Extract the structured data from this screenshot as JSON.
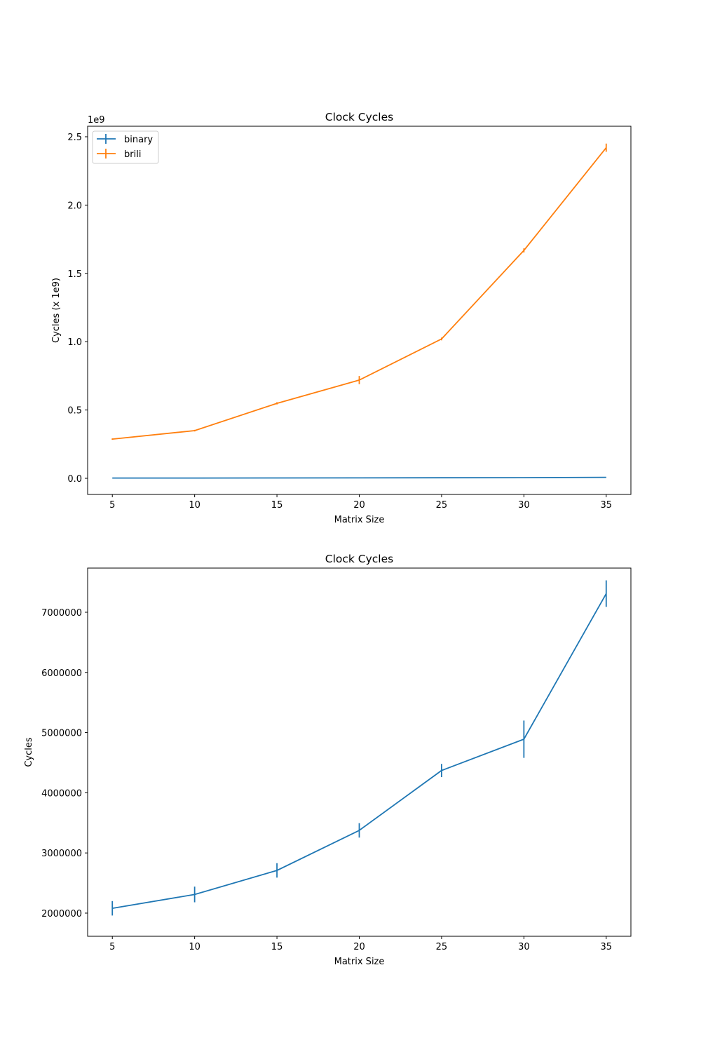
{
  "chart_data": [
    {
      "type": "line",
      "title": "Clock Cycles",
      "xlabel": "Matrix Size",
      "ylabel": "Cycles (x 1e9)",
      "offset_label": "1e9",
      "xlim": [
        3.5,
        36.5
      ],
      "ylim": [
        -0.118,
        2.577
      ],
      "xticks": [
        5,
        10,
        15,
        20,
        25,
        30,
        35
      ],
      "xtick_labels": [
        "5",
        "10",
        "15",
        "20",
        "25",
        "30",
        "35"
      ],
      "yticks": [
        0,
        0.5,
        1.0,
        1.5,
        2.0,
        2.5
      ],
      "ytick_labels": [
        "0.0",
        "0.5",
        "1.0",
        "1.5",
        "2.0",
        "2.5"
      ],
      "grid": false,
      "legend_position": "top-left",
      "x": [
        5,
        10,
        15,
        20,
        25,
        30,
        35
      ],
      "series": [
        {
          "name": "binary",
          "color": "#1f77b4",
          "values": [
            0.0021,
            0.0023,
            0.0027,
            0.0034,
            0.0044,
            0.0049,
            0.0073
          ],
          "errors": [
            0.0001,
            0.0001,
            0.0001,
            0.0001,
            0.0001,
            0.0003,
            0.0002
          ]
        },
        {
          "name": "brili",
          "color": "#ff7f0e",
          "values": [
            0.287,
            0.349,
            0.549,
            0.719,
            1.02,
            1.668,
            2.42
          ],
          "errors": [
            0.005,
            0.006,
            0.008,
            0.03,
            0.01,
            0.015,
            0.03
          ]
        }
      ]
    },
    {
      "type": "line",
      "title": "Clock Cycles",
      "xlabel": "Matrix Size",
      "ylabel": "Cycles",
      "xlim": [
        3.5,
        36.5
      ],
      "ylim": [
        1615000,
        7734000
      ],
      "xticks": [
        5,
        10,
        15,
        20,
        25,
        30,
        35
      ],
      "xtick_labels": [
        "5",
        "10",
        "15",
        "20",
        "25",
        "30",
        "35"
      ],
      "yticks": [
        2000000,
        3000000,
        4000000,
        5000000,
        6000000,
        7000000
      ],
      "ytick_labels": [
        "2000000",
        "3000000",
        "4000000",
        "5000000",
        "6000000",
        "7000000"
      ],
      "grid": false,
      "x": [
        5,
        10,
        15,
        20,
        25,
        30,
        35
      ],
      "series": [
        {
          "name": "binary",
          "color": "#1f77b4",
          "values": [
            2080000,
            2310000,
            2710000,
            3375000,
            4370000,
            4890000,
            7310000
          ],
          "errors": [
            120000,
            130000,
            120000,
            120000,
            110000,
            310000,
            220000
          ]
        }
      ]
    }
  ]
}
